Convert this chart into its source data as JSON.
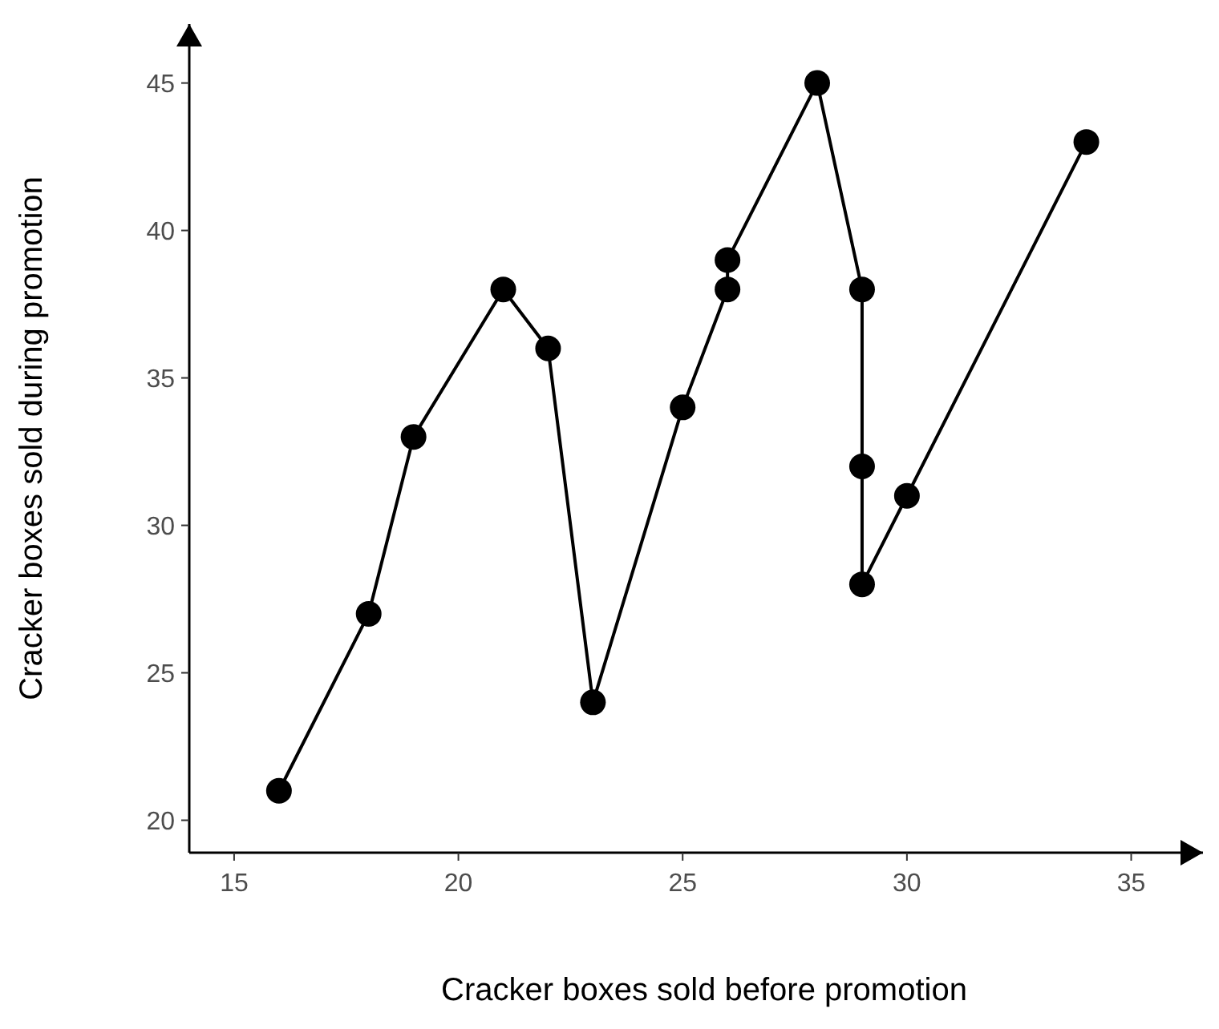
{
  "chart_data": {
    "type": "line",
    "xlabel": "Cracker boxes sold before promotion",
    "ylabel": "Cracker boxes sold during promotion",
    "x": [
      16,
      18,
      19,
      21,
      22,
      23,
      25,
      26,
      26,
      28,
      29,
      29,
      29,
      30,
      34
    ],
    "series": [
      {
        "color": "#000000",
        "values": [
          21,
          27,
          33,
          38,
          36,
          24,
          34,
          38,
          39,
          45,
          38,
          32,
          28,
          31,
          43
        ]
      }
    ],
    "xlim": [
      14,
      36.6
    ],
    "ylim": [
      18.9,
      47
    ],
    "xticks": [
      15,
      20,
      25,
      30,
      35
    ],
    "yticks": [
      20,
      25,
      30,
      35,
      40,
      45
    ],
    "grid": false,
    "marker": "circle",
    "line_style": "solid"
  }
}
